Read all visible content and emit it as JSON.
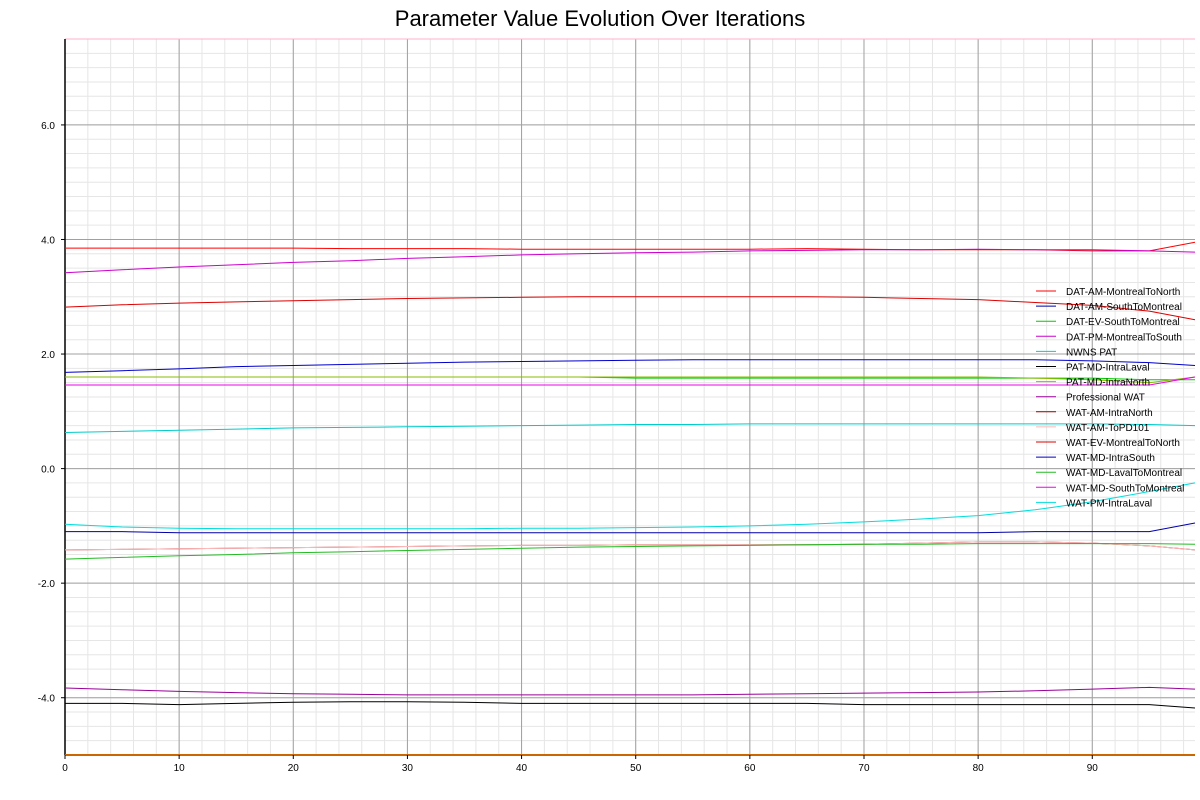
{
  "chart_data": {
    "type": "line",
    "title": "Parameter Value Evolution Over Iterations",
    "xlabel": "",
    "ylabel": "",
    "xlim": [
      0,
      99
    ],
    "ylim": [
      -5,
      7.5
    ],
    "x_ticks": [
      0,
      10,
      20,
      30,
      40,
      50,
      60,
      70,
      80,
      90
    ],
    "y_ticks": [
      -4.0,
      -2.0,
      0.0,
      2.0,
      4.0,
      6.0
    ],
    "y_tick_labels": [
      "-4.0",
      "-2.0",
      "0.0",
      "2.0",
      "4.0",
      "6.0"
    ],
    "grid": true,
    "legend_position": "right",
    "x": [
      0,
      5,
      10,
      15,
      20,
      25,
      30,
      35,
      40,
      45,
      50,
      55,
      60,
      65,
      70,
      75,
      80,
      85,
      90,
      95,
      99
    ],
    "series": [
      {
        "name": "DAT-AM-MontrealToNorth",
        "color": "#ff0000",
        "values": [
          3.85,
          3.85,
          3.85,
          3.85,
          3.85,
          3.84,
          3.84,
          3.84,
          3.83,
          3.83,
          3.83,
          3.83,
          3.83,
          3.84,
          3.83,
          3.82,
          3.82,
          3.82,
          3.8,
          3.8,
          3.95
        ]
      },
      {
        "name": "DAT-AM-SouthToMontreal",
        "color": "#0000aa",
        "values": [
          -1.1,
          -1.1,
          -1.12,
          -1.12,
          -1.12,
          -1.12,
          -1.12,
          -1.12,
          -1.12,
          -1.12,
          -1.12,
          -1.12,
          -1.12,
          -1.12,
          -1.12,
          -1.12,
          -1.12,
          -1.1,
          -1.1,
          -1.1,
          -0.95
        ]
      },
      {
        "name": "DAT-EV-SouthToMontreal",
        "color": "#00cc00",
        "values": [
          1.6,
          1.6,
          1.6,
          1.6,
          1.6,
          1.6,
          1.6,
          1.6,
          1.6,
          1.6,
          1.58,
          1.58,
          1.58,
          1.58,
          1.58,
          1.58,
          1.58,
          1.58,
          1.58,
          1.55,
          1.55
        ]
      },
      {
        "name": "DAT-PM-MontrealToSouth",
        "color": "#cc00cc",
        "values": [
          3.42,
          3.47,
          3.52,
          3.56,
          3.6,
          3.63,
          3.67,
          3.7,
          3.73,
          3.75,
          3.77,
          3.78,
          3.8,
          3.81,
          3.82,
          3.82,
          3.83,
          3.82,
          3.82,
          3.8,
          3.78
        ]
      },
      {
        "name": "NWNS PAT",
        "color": "#00cccc",
        "values": [
          0.63,
          0.65,
          0.67,
          0.69,
          0.71,
          0.72,
          0.73,
          0.74,
          0.75,
          0.76,
          0.77,
          0.77,
          0.78,
          0.78,
          0.78,
          0.78,
          0.78,
          0.78,
          0.78,
          0.77,
          0.75
        ]
      },
      {
        "name": "PAT-MD-IntraLaval",
        "color": "#000000",
        "values": [
          -4.1,
          -4.1,
          -4.12,
          -4.1,
          -4.08,
          -4.07,
          -4.07,
          -4.08,
          -4.1,
          -4.1,
          -4.1,
          -4.1,
          -4.1,
          -4.1,
          -4.12,
          -4.12,
          -4.12,
          -4.12,
          -4.12,
          -4.12,
          -4.18
        ]
      },
      {
        "name": "PAT-MD-IntraNorth",
        "color": "#88bb00",
        "values": [
          1.6,
          1.6,
          1.6,
          1.6,
          1.6,
          1.6,
          1.6,
          1.6,
          1.6,
          1.6,
          1.6,
          1.6,
          1.6,
          1.6,
          1.6,
          1.6,
          1.6,
          1.58,
          1.55,
          1.5,
          1.6
        ]
      },
      {
        "name": "Professional WAT",
        "color": "#990099",
        "values": [
          -3.83,
          -3.86,
          -3.89,
          -3.91,
          -3.93,
          -3.94,
          -3.95,
          -3.95,
          -3.95,
          -3.95,
          -3.95,
          -3.95,
          -3.94,
          -3.93,
          -3.92,
          -3.91,
          -3.9,
          -3.88,
          -3.85,
          -3.82,
          -3.85
        ]
      },
      {
        "name": "WAT-AM-IntraNorth",
        "color": "#990000",
        "values": [
          -1.42,
          -1.41,
          -1.4,
          -1.39,
          -1.38,
          -1.37,
          -1.36,
          -1.35,
          -1.34,
          -1.34,
          -1.33,
          -1.33,
          -1.33,
          -1.33,
          -1.32,
          -1.3,
          -1.28,
          -1.28,
          -1.3,
          -1.35,
          -1.42
        ]
      },
      {
        "name": "WAT-AM-ToPD101",
        "color": "#ffbbbb",
        "values": [
          -1.42,
          -1.41,
          -1.4,
          -1.39,
          -1.38,
          -1.37,
          -1.36,
          -1.35,
          -1.34,
          -1.34,
          -1.33,
          -1.33,
          -1.33,
          -1.33,
          -1.32,
          -1.3,
          -1.28,
          -1.28,
          -1.3,
          -1.35,
          -1.42
        ]
      },
      {
        "name": "WAT-EV-MontrealToNorth",
        "color": "#dd0000",
        "values": [
          2.82,
          2.86,
          2.89,
          2.91,
          2.93,
          2.95,
          2.97,
          2.98,
          2.99,
          3.0,
          3.0,
          3.0,
          3.0,
          3.0,
          2.99,
          2.97,
          2.95,
          2.9,
          2.85,
          2.75,
          2.6
        ]
      },
      {
        "name": "WAT-MD-IntraSouth",
        "color": "#0000cc",
        "values": [
          1.68,
          1.71,
          1.74,
          1.78,
          1.8,
          1.82,
          1.84,
          1.86,
          1.87,
          1.88,
          1.89,
          1.9,
          1.9,
          1.9,
          1.9,
          1.9,
          1.9,
          1.9,
          1.88,
          1.85,
          1.8
        ]
      },
      {
        "name": "WAT-MD-LavalToMontreal",
        "color": "#22bb22",
        "values": [
          -1.58,
          -1.55,
          -1.52,
          -1.5,
          -1.47,
          -1.45,
          -1.43,
          -1.41,
          -1.39,
          -1.37,
          -1.36,
          -1.35,
          -1.34,
          -1.33,
          -1.32,
          -1.32,
          -1.31,
          -1.31,
          -1.31,
          -1.31,
          -1.32
        ]
      },
      {
        "name": "WAT-MD-SouthToMontreal",
        "color": "#ee00ee",
        "values": [
          1.46,
          1.46,
          1.46,
          1.46,
          1.46,
          1.46,
          1.46,
          1.46,
          1.46,
          1.46,
          1.46,
          1.46,
          1.46,
          1.46,
          1.46,
          1.46,
          1.46,
          1.46,
          1.46,
          1.46,
          1.6
        ]
      },
      {
        "name": "WAT-PM-IntraLaval",
        "color": "#00dddd",
        "values": [
          -0.97,
          -1.02,
          -1.04,
          -1.05,
          -1.05,
          -1.05,
          -1.05,
          -1.05,
          -1.04,
          -1.04,
          -1.03,
          -1.02,
          -1.0,
          -0.97,
          -0.93,
          -0.88,
          -0.82,
          -0.72,
          -0.58,
          -0.4,
          -0.25
        ]
      }
    ]
  }
}
